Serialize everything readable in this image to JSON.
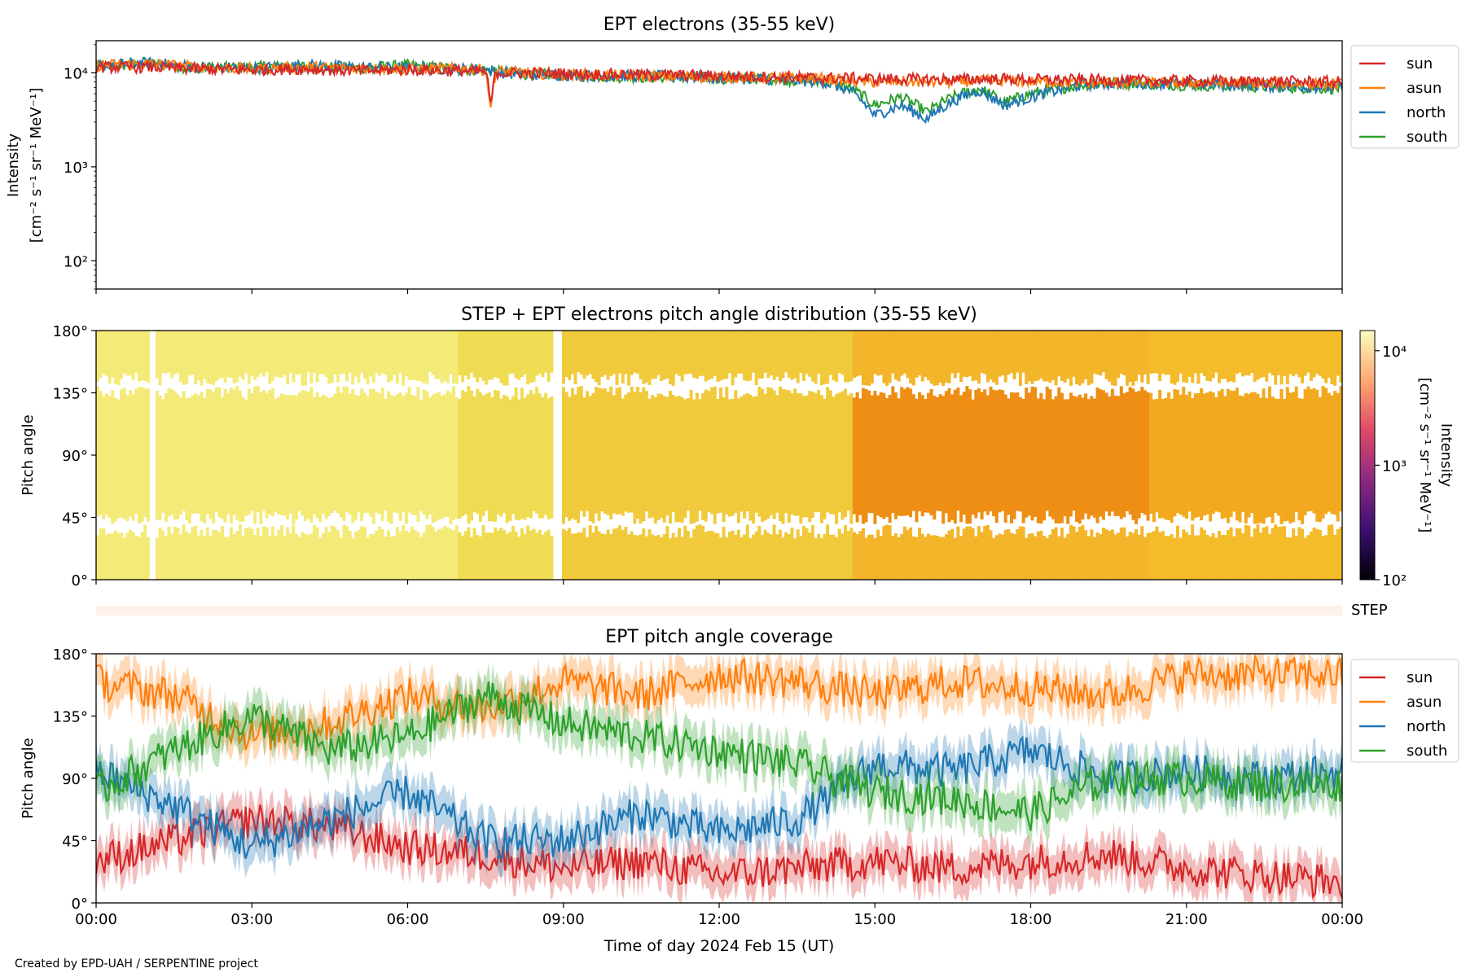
{
  "figure": {
    "credit": "Created by EPD-UAH / SERPENTINE project",
    "xlabel": "Time of day 2024 Feb 15 (UT)",
    "xticks": [
      "00:00",
      "03:00",
      "06:00",
      "09:00",
      "12:00",
      "15:00",
      "18:00",
      "21:00",
      "00:00"
    ],
    "xlim_hours": [
      0,
      24
    ]
  },
  "colors": {
    "sun": "#d62728",
    "asun": "#ff7f0e",
    "north": "#1f77b4",
    "south": "#2ca02c",
    "step_band": "#fdf0ea"
  },
  "chart_data": [
    {
      "type": "line",
      "title": "EPT electrons (35-55 keV)",
      "ylabel_line1": "Intensity",
      "ylabel_line2": "[cm⁻² s⁻¹ sr⁻¹ MeV⁻¹]",
      "yscale": "log",
      "ylim": [
        50,
        22000
      ],
      "yticks": [
        "10²",
        "10³",
        "10⁴"
      ],
      "legend_position": "outside-right",
      "x_hours": [
        0,
        1,
        2,
        3,
        4,
        5,
        6,
        7,
        7.5,
        7.6,
        7.7,
        8,
        9,
        10,
        11,
        12,
        13,
        14,
        14.5,
        15,
        15.5,
        16,
        16.5,
        17,
        17.5,
        18,
        19,
        20,
        21,
        22,
        23,
        24
      ],
      "series": [
        {
          "name": "sun",
          "values": [
            11500,
            11500,
            11000,
            10800,
            11000,
            10500,
            10800,
            10500,
            10300,
            4500,
            10000,
            10000,
            9800,
            9600,
            9500,
            9300,
            9000,
            8800,
            8800,
            8600,
            8600,
            8500,
            8500,
            8600,
            8600,
            8500,
            8400,
            8300,
            8200,
            8100,
            8100,
            8000
          ]
        },
        {
          "name": "asun",
          "values": [
            12000,
            12500,
            11500,
            11000,
            11500,
            11200,
            11000,
            11000,
            10800,
            3800,
            10500,
            10200,
            9600,
            9400,
            9200,
            9000,
            8900,
            8700,
            8200,
            8000,
            8100,
            8000,
            8000,
            8200,
            8200,
            8100,
            7900,
            7900,
            7800,
            7800,
            7700,
            7600
          ]
        },
        {
          "name": "north",
          "values": [
            12000,
            12800,
            11500,
            11200,
            12000,
            11500,
            11200,
            11000,
            10800,
            10500,
            10200,
            9800,
            9500,
            9300,
            9200,
            8800,
            8600,
            8000,
            6500,
            3500,
            4500,
            3200,
            5000,
            6500,
            4500,
            5500,
            7500,
            7800,
            7600,
            7400,
            7200,
            7000
          ]
        },
        {
          "name": "south",
          "values": [
            11500,
            12500,
            11200,
            11500,
            11800,
            11200,
            12000,
            11000,
            10800,
            10600,
            10300,
            9800,
            9400,
            9100,
            9000,
            8800,
            8600,
            8000,
            7000,
            4500,
            5500,
            3800,
            5500,
            6800,
            4800,
            6000,
            7500,
            7800,
            7400,
            7200,
            7000,
            6800
          ]
        }
      ]
    },
    {
      "type": "heatmap",
      "title": "STEP + EPT electrons pitch angle distribution (35-55 keV)",
      "ylabel": "Pitch angle",
      "ylim_deg": [
        0,
        180
      ],
      "yticks": [
        "0°",
        "45°",
        "90°",
        "135°",
        "180°"
      ],
      "colorbar": {
        "label": "Intensity",
        "units": "[cm⁻² s⁻¹ sr⁻¹ MeV⁻¹]",
        "scale": "log",
        "range": [
          100,
          15000
        ],
        "ticks": [
          "10²",
          "10³",
          "10⁴"
        ],
        "colormap": "inferno"
      },
      "step_label": "STEP"
    },
    {
      "type": "line",
      "title": "EPT pitch angle coverage",
      "ylabel": "Pitch angle",
      "ylim_deg": [
        0,
        180
      ],
      "yticks": [
        "0°",
        "45°",
        "90°",
        "135°",
        "180°"
      ],
      "legend_position": "outside-right",
      "x_hours": [
        0,
        1.5,
        3,
        4.5,
        6,
        7.5,
        9,
        10.5,
        12,
        13.5,
        15,
        16.5,
        18,
        19.5,
        21,
        22.5,
        24
      ],
      "series": [
        {
          "name": "sun",
          "values": [
            30,
            45,
            60,
            55,
            40,
            35,
            25,
            30,
            20,
            25,
            30,
            25,
            30,
            35,
            25,
            20,
            15
          ]
        },
        {
          "name": "asun",
          "values": [
            160,
            150,
            120,
            130,
            150,
            140,
            160,
            150,
            165,
            160,
            150,
            160,
            155,
            150,
            165,
            165,
            165
          ]
        },
        {
          "name": "north",
          "values": [
            95,
            70,
            40,
            60,
            80,
            45,
            45,
            65,
            50,
            60,
            100,
            95,
            110,
            90,
            95,
            90,
            95
          ]
        },
        {
          "name": "south",
          "values": [
            80,
            110,
            135,
            110,
            120,
            150,
            130,
            120,
            110,
            100,
            80,
            75,
            65,
            90,
            90,
            85,
            85
          ]
        }
      ]
    }
  ]
}
